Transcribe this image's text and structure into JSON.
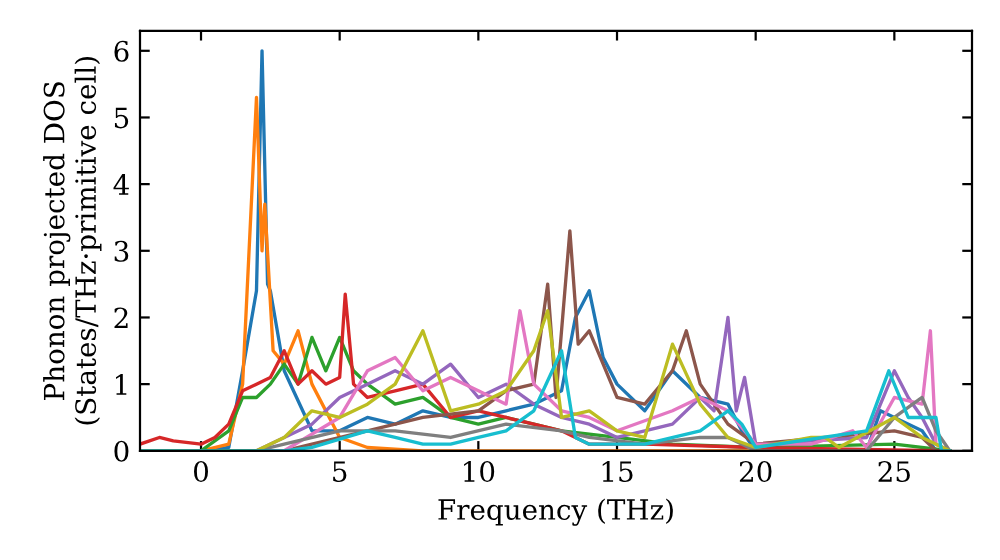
{
  "chart_data": {
    "type": "line",
    "xlabel": "Frequency (THz)",
    "ylabel": "Phonon projected DOS\n(States/THz·primitive cell)",
    "xlim": [
      -2.2,
      27.8
    ],
    "ylim": [
      0,
      6.3
    ],
    "xticks": [
      0,
      5,
      10,
      15,
      20,
      25
    ],
    "yticks": [
      0,
      1,
      2,
      3,
      4,
      5,
      6
    ],
    "grid": false,
    "legend": false,
    "marker": "none",
    "line_style": "solid",
    "series": [
      {
        "color": "#1f77b4",
        "x": [
          -2.2,
          0,
          1,
          1.5,
          2,
          2.2,
          2.4,
          2.5,
          3,
          4,
          5,
          6,
          7,
          8,
          9,
          10,
          11,
          12,
          13,
          13.5,
          14,
          14.5,
          15,
          16,
          17,
          18,
          19,
          19.5,
          20,
          24,
          24.5,
          25,
          26,
          26.5,
          27
        ],
        "values": [
          0,
          0,
          0.05,
          1.2,
          2.4,
          6.0,
          2.5,
          2.4,
          1.2,
          0.3,
          0.3,
          0.5,
          0.4,
          0.6,
          0.5,
          0.5,
          0.6,
          0.7,
          0.9,
          2.0,
          2.4,
          1.4,
          1.0,
          0.6,
          1.2,
          0.8,
          0.7,
          0.3,
          0,
          0,
          0.6,
          0.5,
          0.3,
          0,
          0
        ]
      },
      {
        "color": "#ff7f0e",
        "x": [
          -2.2,
          0,
          1,
          1.5,
          2,
          2.2,
          2.3,
          2.6,
          3,
          3.5,
          4,
          5,
          6,
          8,
          27
        ],
        "values": [
          0,
          0,
          0.1,
          1.0,
          5.3,
          3.0,
          3.7,
          1.5,
          1.3,
          1.8,
          1.0,
          0.2,
          0.05,
          0,
          0
        ]
      },
      {
        "color": "#2ca02c",
        "x": [
          -2.2,
          0,
          1,
          1.5,
          2,
          2.5,
          3,
          3.5,
          4,
          4.5,
          5,
          5.5,
          6,
          7,
          8,
          9,
          10,
          11,
          12,
          13,
          15,
          17,
          20,
          25,
          27
        ],
        "values": [
          0,
          0,
          0.3,
          0.8,
          0.8,
          1.0,
          1.3,
          1.0,
          1.7,
          1.2,
          1.7,
          1.2,
          1.0,
          0.7,
          0.8,
          0.5,
          0.4,
          0.5,
          0.4,
          0.3,
          0.2,
          0.1,
          0.05,
          0.1,
          0
        ]
      },
      {
        "color": "#d62728",
        "x": [
          -2.2,
          -1.5,
          -1,
          0,
          0.5,
          1,
          1.5,
          2,
          2.5,
          3,
          3.5,
          4,
          4.5,
          5,
          5.2,
          5.5,
          6,
          7,
          8,
          9,
          10,
          11,
          12,
          13,
          14,
          16,
          20,
          27
        ],
        "values": [
          0.1,
          0.2,
          0.15,
          0.1,
          0.2,
          0.4,
          0.9,
          1.0,
          1.1,
          1.5,
          1.0,
          1.2,
          1.0,
          1.1,
          2.35,
          1.0,
          0.8,
          0.9,
          1.0,
          0.5,
          0.6,
          0.5,
          0.4,
          0.3,
          0.1,
          0.1,
          0.05,
          0
        ]
      },
      {
        "color": "#9467bd",
        "x": [
          -2.2,
          2,
          3,
          4,
          5,
          6,
          7,
          8,
          9,
          10,
          11,
          12,
          13,
          14,
          15,
          16,
          17,
          18,
          18.5,
          19,
          19.3,
          19.6,
          20,
          24,
          25,
          25.5,
          26,
          26.5,
          27
        ],
        "values": [
          0,
          0,
          0.2,
          0.4,
          0.8,
          1.0,
          1.2,
          1.0,
          1.3,
          0.8,
          1.0,
          0.7,
          0.5,
          0.4,
          0.2,
          0.3,
          0.4,
          0.8,
          0.6,
          2.0,
          0.6,
          1.1,
          0.1,
          0.2,
          1.2,
          0.8,
          0.5,
          0.1,
          0
        ]
      },
      {
        "color": "#8c564b",
        "x": [
          -2.2,
          3,
          4,
          6,
          8,
          10,
          11,
          12,
          12.5,
          12.8,
          13.3,
          13.6,
          14,
          15,
          16,
          17,
          17.5,
          18,
          19,
          20,
          25,
          26,
          26.5,
          27
        ],
        "values": [
          0,
          0,
          0.1,
          0.3,
          0.5,
          0.6,
          0.9,
          1.0,
          2.5,
          0.8,
          3.3,
          1.6,
          1.8,
          0.8,
          0.7,
          1.2,
          1.8,
          1.0,
          0.4,
          0.1,
          0.3,
          0.2,
          0,
          0
        ]
      },
      {
        "color": "#e377c2",
        "x": [
          -2.2,
          3,
          5,
          6,
          7,
          8,
          9,
          10,
          11,
          11.5,
          12,
          13,
          14,
          15,
          17,
          18,
          19,
          20,
          22,
          23.5,
          24,
          25,
          26,
          26.3,
          26.5,
          27
        ],
        "values": [
          0,
          0,
          0.5,
          1.2,
          1.4,
          0.9,
          1.1,
          0.9,
          0.7,
          2.1,
          1.0,
          0.6,
          0.5,
          0.3,
          0.6,
          0.8,
          0.6,
          0.1,
          0.1,
          0.3,
          0.05,
          0.8,
          0.7,
          1.8,
          0.1,
          0
        ]
      },
      {
        "color": "#7f7f7f",
        "x": [
          -2.2,
          2,
          3,
          5,
          7,
          9,
          11,
          13,
          14,
          16,
          18,
          19,
          20,
          24,
          25,
          26,
          26.5,
          27
        ],
        "values": [
          0,
          0,
          0.1,
          0.3,
          0.3,
          0.2,
          0.4,
          0.3,
          0.2,
          0.1,
          0.2,
          0.2,
          0,
          0,
          0.5,
          0.8,
          0.3,
          0
        ]
      },
      {
        "color": "#bcbd22",
        "x": [
          -2.2,
          2,
          3,
          4,
          5,
          6,
          7,
          8,
          9,
          10,
          11,
          12,
          12.5,
          13,
          14,
          15,
          16,
          17,
          18,
          19,
          20,
          22,
          22.5,
          23,
          25,
          26,
          27
        ],
        "values": [
          0,
          0,
          0.2,
          0.6,
          0.5,
          0.7,
          1.0,
          1.8,
          0.6,
          0.7,
          0.9,
          1.5,
          2.1,
          0.5,
          0.6,
          0.3,
          0.2,
          1.6,
          0.7,
          0.2,
          0.05,
          0.2,
          0.2,
          0.05,
          0.5,
          0.2,
          0
        ]
      },
      {
        "color": "#17becf",
        "x": [
          -2.2,
          3,
          4,
          6,
          7,
          8,
          9,
          10,
          11,
          12,
          13,
          13.5,
          14,
          16,
          18,
          19,
          19.5,
          20,
          24,
          24.8,
          25.5,
          26.5,
          26.7,
          27
        ],
        "values": [
          0,
          0,
          0.05,
          0.3,
          0.2,
          0.1,
          0.1,
          0.2,
          0.3,
          0.6,
          1.5,
          0.2,
          0.1,
          0.1,
          0.3,
          0.6,
          0.4,
          0.05,
          0.3,
          1.2,
          0.5,
          0.5,
          0,
          0
        ]
      }
    ]
  }
}
